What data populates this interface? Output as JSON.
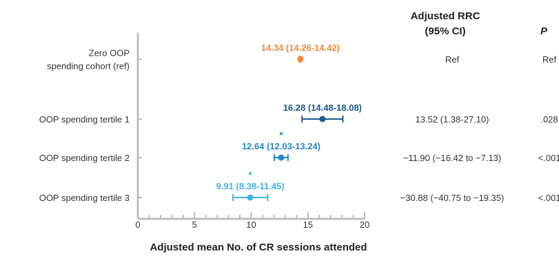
{
  "chart_data": {
    "type": "forest",
    "xlabel": "Adjusted mean No. of CR sessions attended",
    "xlim": [
      0,
      20
    ],
    "xticks": [
      0,
      5,
      10,
      15,
      20
    ],
    "minor_ticks": [
      1,
      2,
      3,
      4,
      6,
      7,
      8,
      9,
      11,
      12,
      13,
      14,
      16,
      17,
      18,
      19
    ],
    "grid": false,
    "rows": [
      {
        "label_lines": [
          "Zero OOP",
          "spending cohort (ref)"
        ],
        "estimate": 14.34,
        "lower": 14.26,
        "upper": 14.42,
        "estimate_label": "14.34 (14.26-14.42)",
        "significant": false,
        "marker": "",
        "color": "#F08A3A",
        "rrc": "Ref",
        "p": "Ref"
      },
      {
        "label_lines": [
          "OOP spending tertile 1"
        ],
        "estimate": 16.28,
        "lower": 14.48,
        "upper": 18.08,
        "estimate_label": "16.28 (14.48-18.08)",
        "significant": false,
        "marker": "",
        "color": "#1D5A8E",
        "rrc": "13.52 (1.38-27.10)",
        "p": ".028"
      },
      {
        "label_lines": [
          "OOP spending tertile 2"
        ],
        "estimate": 12.64,
        "lower": 12.03,
        "upper": 13.24,
        "estimate_label": "12.64 (12.03-13.24)",
        "significant": true,
        "marker": "*",
        "color": "#2585C7",
        "rrc": "−11.90 (−16.42 to −7.13)",
        "p": "<.001"
      },
      {
        "label_lines": [
          "OOP spending tertile 3"
        ],
        "estimate": 9.91,
        "lower": 8.38,
        "upper": 11.45,
        "estimate_label": "9.91 (8.38-11.45)",
        "significant": true,
        "marker": "*",
        "color": "#45B1E6",
        "rrc": "−30.88 (−40.75 to −19.35)",
        "p": "<.001"
      }
    ],
    "table_headers": {
      "rrc": [
        "Adjusted RRC",
        "(95% CI)"
      ],
      "p": "P"
    }
  }
}
